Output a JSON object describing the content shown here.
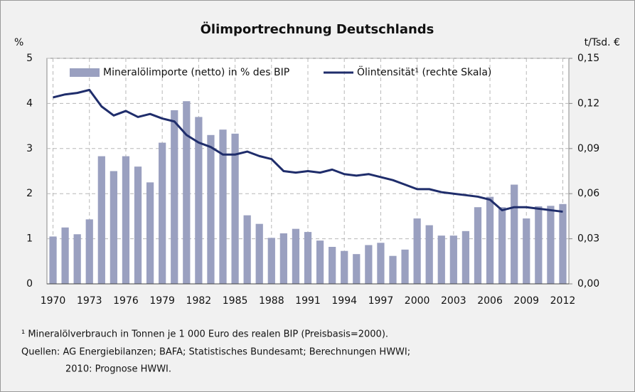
{
  "chart_data": {
    "type": "bar_line",
    "title": "Ölimportrechnung Deutschlands",
    "y_unit": "%",
    "y2_unit": "t/Tsd. €",
    "x": [
      1970,
      1971,
      1972,
      1973,
      1974,
      1975,
      1976,
      1977,
      1978,
      1979,
      1980,
      1981,
      1982,
      1983,
      1984,
      1985,
      1986,
      1987,
      1988,
      1989,
      1990,
      1991,
      1992,
      1993,
      1994,
      1995,
      1996,
      1997,
      1998,
      1999,
      2000,
      2001,
      2002,
      2003,
      2004,
      2005,
      2006,
      2007,
      2008,
      2009,
      2010,
      2011,
      2012
    ],
    "xlim": [
      1969.5,
      2012.5
    ],
    "xticks": [
      1970,
      1973,
      1976,
      1979,
      1982,
      1985,
      1988,
      1991,
      1994,
      1997,
      2000,
      2003,
      2006,
      2009,
      2012
    ],
    "ylim": [
      0,
      5
    ],
    "yticks": [
      0,
      1,
      2,
      3,
      4,
      5
    ],
    "y2lim": [
      0,
      0.15
    ],
    "y2ticks": [
      {
        "value": 0,
        "label": "0,00"
      },
      {
        "value": 0.03,
        "label": "0,03"
      },
      {
        "value": 0.06,
        "label": "0,06"
      },
      {
        "value": 0.09,
        "label": "0,09"
      },
      {
        "value": 0.12,
        "label": "0,12"
      },
      {
        "value": 0.15,
        "label": "0,15"
      }
    ],
    "grid": true,
    "series": [
      {
        "name": "Mineralölimporte (netto) in % des BIP",
        "kind": "bar",
        "color": "#9aa0c0",
        "values": [
          1.05,
          1.25,
          1.1,
          1.43,
          2.83,
          2.5,
          2.83,
          2.6,
          2.25,
          3.13,
          3.85,
          4.05,
          3.7,
          3.3,
          3.42,
          3.33,
          1.52,
          1.33,
          1.02,
          1.12,
          1.22,
          1.15,
          0.96,
          0.82,
          0.73,
          0.66,
          0.86,
          0.91,
          0.62,
          0.76,
          1.45,
          1.3,
          1.07,
          1.07,
          1.17,
          1.7,
          1.93,
          1.7,
          2.2,
          1.45,
          1.72,
          1.73,
          1.77
        ]
      },
      {
        "name": "Ölintensität¹ (rechte Skala)",
        "kind": "line",
        "axis": "y2",
        "color": "#1f2d6b",
        "values": [
          0.124,
          0.126,
          0.127,
          0.129,
          0.118,
          0.112,
          0.115,
          0.111,
          0.113,
          0.11,
          0.108,
          0.099,
          0.094,
          0.091,
          0.086,
          0.086,
          0.088,
          0.085,
          0.083,
          0.075,
          0.074,
          0.075,
          0.074,
          0.076,
          0.073,
          0.072,
          0.073,
          0.071,
          0.069,
          0.066,
          0.063,
          0.063,
          0.061,
          0.06,
          0.059,
          0.058,
          0.056,
          0.049,
          0.051,
          0.051,
          0.05,
          0.049,
          0.048
        ]
      }
    ],
    "notes": [
      "¹ Mineralölverbrauch in Tonnen je 1 000 Euro des realen BIP (Preisbasis=2000).",
      "Quellen: AG Energiebilanzen; BAFA; Statistisches Bundesamt; Berechnungen HWWI;",
      "2010: Prognose HWWI."
    ]
  }
}
